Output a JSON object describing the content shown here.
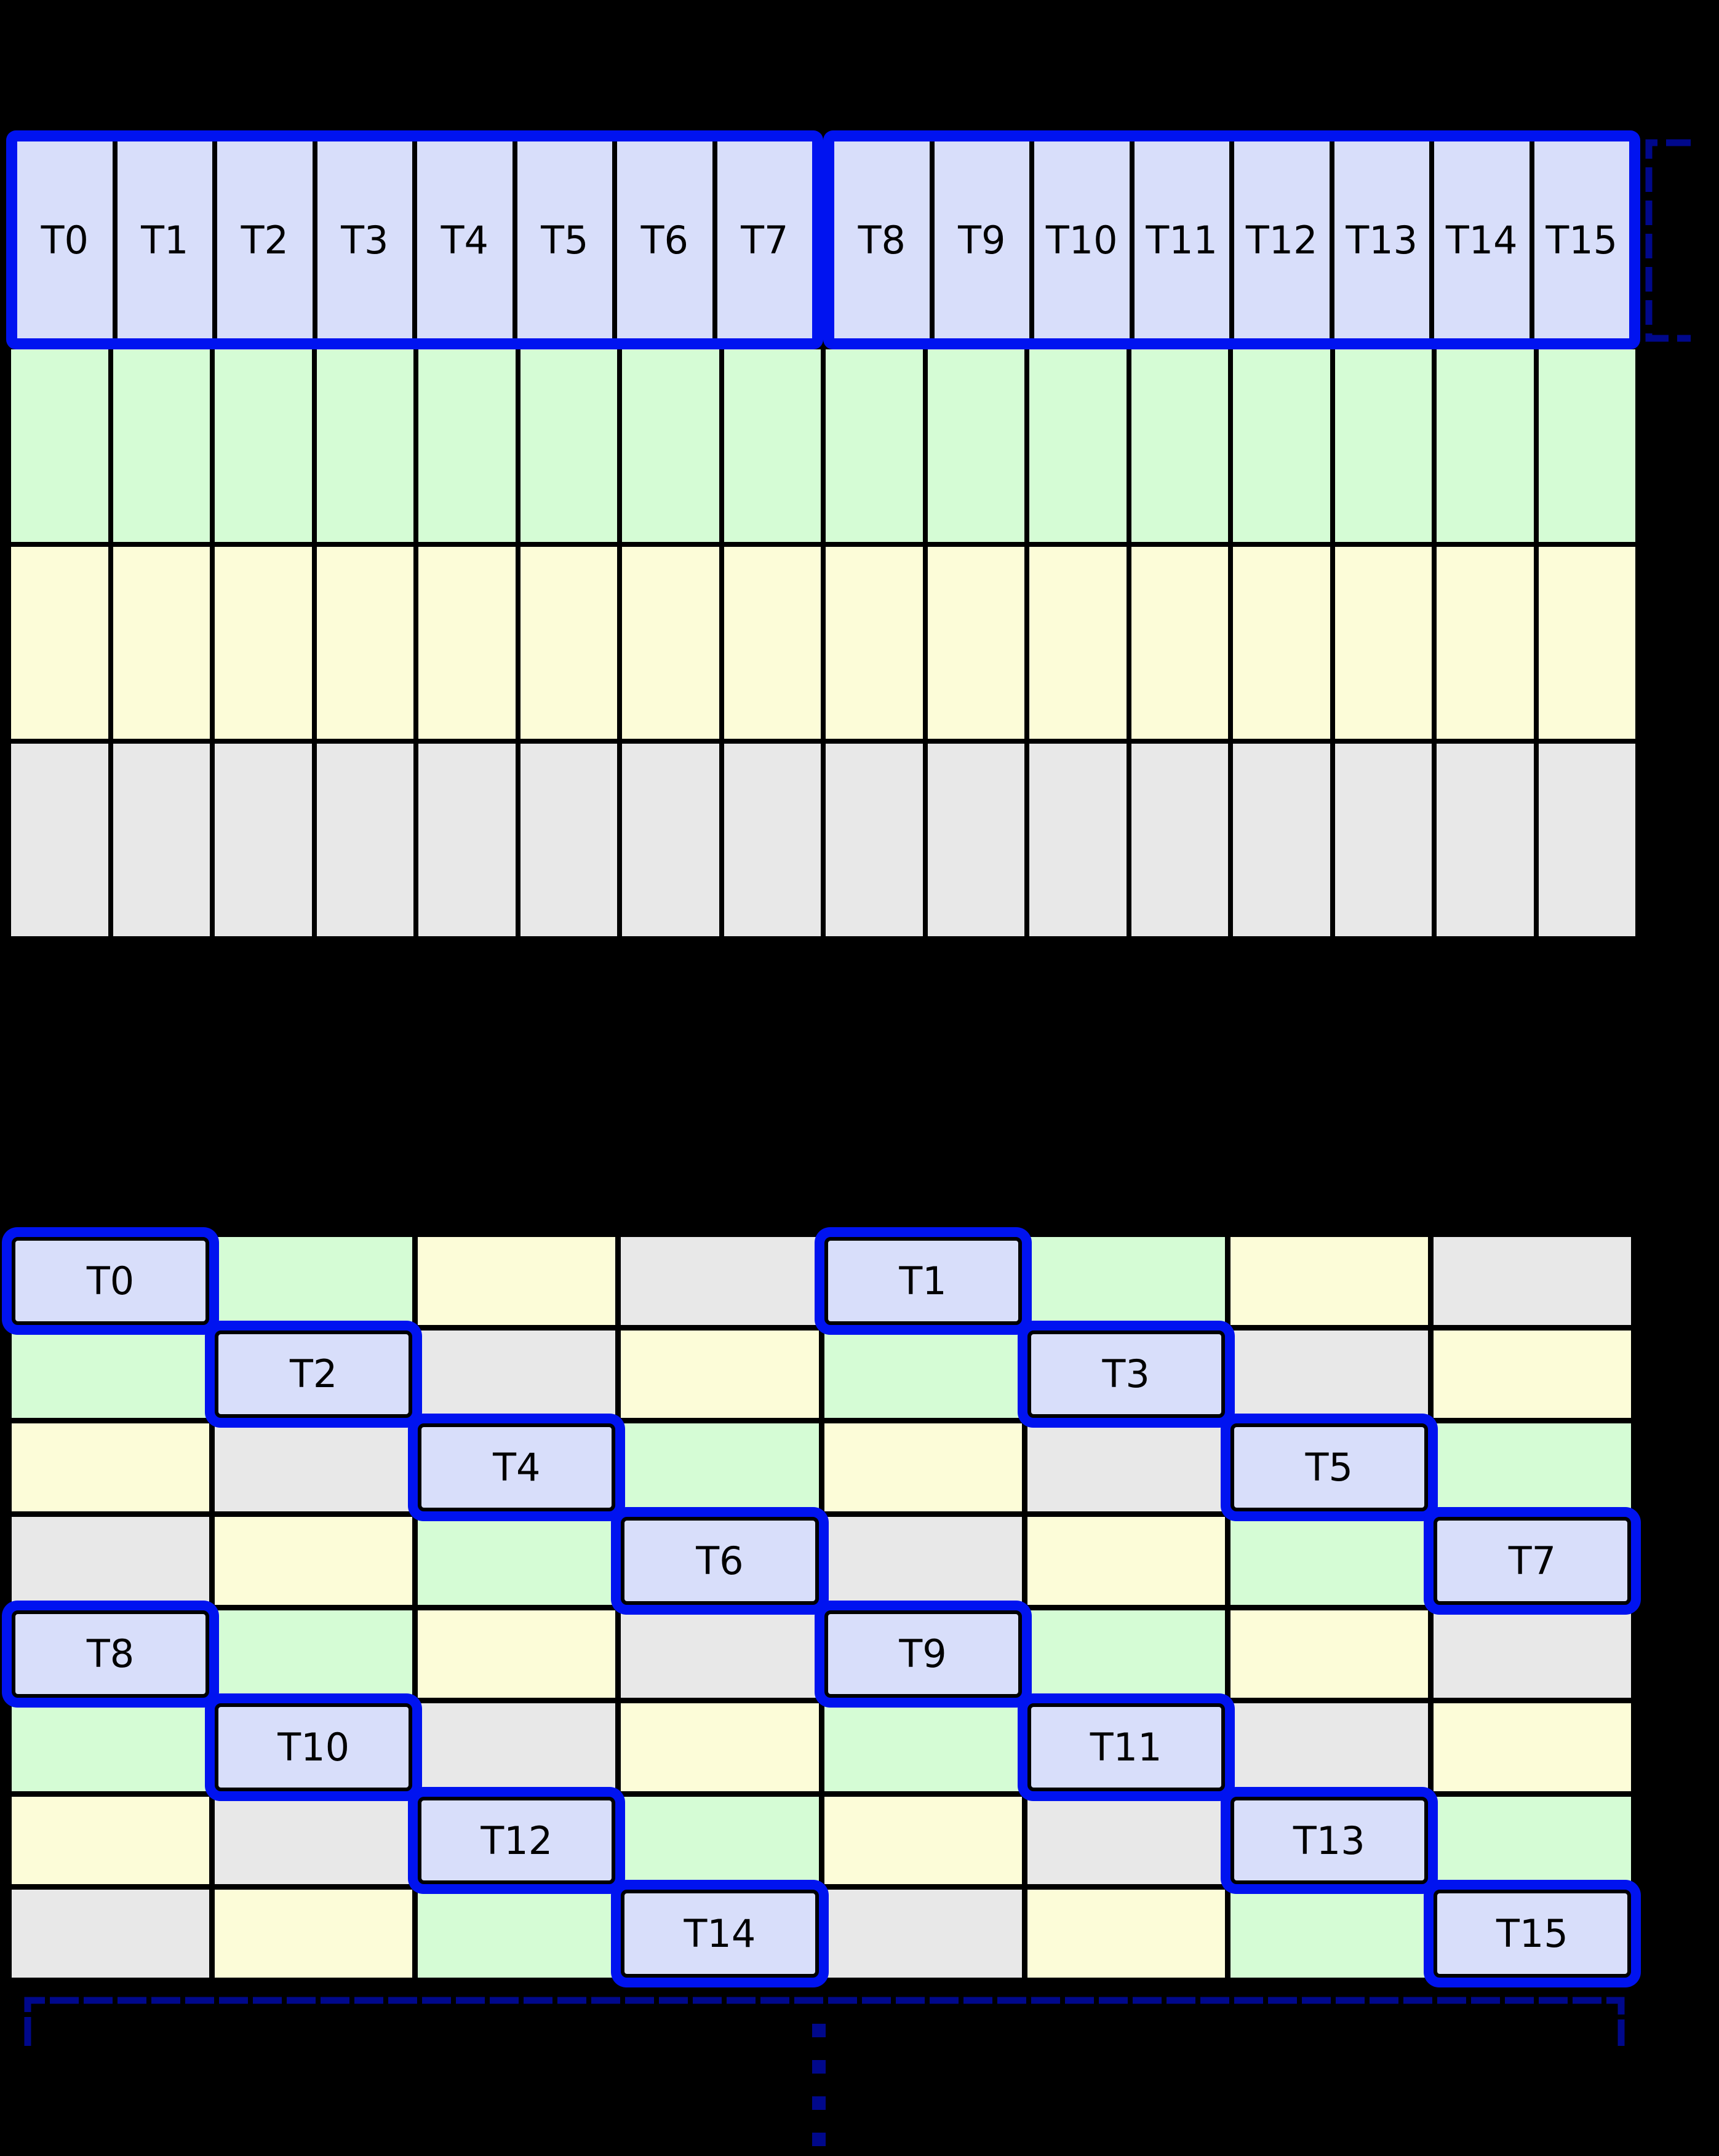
{
  "diagram": {
    "kind": "thread-to-memory-layout",
    "background": "#000000"
  },
  "colors": {
    "thread_cell_fill": "#d8defa",
    "green_cell_fill": "#d5fcd5",
    "yellow_cell_fill": "#fcfcd8",
    "gray_cell_fill": "#e8e8e8",
    "thread_outline_blue": "#0013f0",
    "bracket_navy": "#00088b",
    "grid_line_black": "#000000",
    "label_text": "#000000"
  },
  "top_grid": {
    "columns": 16,
    "group_size": 8,
    "thread_labels": [
      "T0",
      "T1",
      "T2",
      "T3",
      "T4",
      "T5",
      "T6",
      "T7",
      "T8",
      "T9",
      "T10",
      "T11",
      "T12",
      "T13",
      "T14",
      "T15"
    ],
    "plain_rows": [
      {
        "color": "green"
      },
      {
        "color": "yellow"
      },
      {
        "color": "gray"
      }
    ]
  },
  "bottom_grid": {
    "columns": 8,
    "rows": [
      {
        "cells": [
          {
            "color": "blue",
            "label": "T0"
          },
          {
            "color": "green"
          },
          {
            "color": "yellow"
          },
          {
            "color": "gray"
          },
          {
            "color": "blue",
            "label": "T1"
          },
          {
            "color": "green"
          },
          {
            "color": "yellow"
          },
          {
            "color": "gray"
          }
        ]
      },
      {
        "cells": [
          {
            "color": "green"
          },
          {
            "color": "blue",
            "label": "T2"
          },
          {
            "color": "gray"
          },
          {
            "color": "yellow"
          },
          {
            "color": "green"
          },
          {
            "color": "blue",
            "label": "T3"
          },
          {
            "color": "gray"
          },
          {
            "color": "yellow"
          }
        ]
      },
      {
        "cells": [
          {
            "color": "yellow"
          },
          {
            "color": "gray"
          },
          {
            "color": "blue",
            "label": "T4"
          },
          {
            "color": "green"
          },
          {
            "color": "yellow"
          },
          {
            "color": "gray"
          },
          {
            "color": "blue",
            "label": "T5"
          },
          {
            "color": "green"
          }
        ]
      },
      {
        "cells": [
          {
            "color": "gray"
          },
          {
            "color": "yellow"
          },
          {
            "color": "green"
          },
          {
            "color": "blue",
            "label": "T6"
          },
          {
            "color": "gray"
          },
          {
            "color": "yellow"
          },
          {
            "color": "green"
          },
          {
            "color": "blue",
            "label": "T7"
          }
        ]
      },
      {
        "cells": [
          {
            "color": "blue",
            "label": "T8"
          },
          {
            "color": "green"
          },
          {
            "color": "yellow"
          },
          {
            "color": "gray"
          },
          {
            "color": "blue",
            "label": "T9"
          },
          {
            "color": "green"
          },
          {
            "color": "yellow"
          },
          {
            "color": "gray"
          }
        ]
      },
      {
        "cells": [
          {
            "color": "green"
          },
          {
            "color": "blue",
            "label": "T10"
          },
          {
            "color": "gray"
          },
          {
            "color": "yellow"
          },
          {
            "color": "green"
          },
          {
            "color": "blue",
            "label": "T11"
          },
          {
            "color": "gray"
          },
          {
            "color": "yellow"
          }
        ]
      },
      {
        "cells": [
          {
            "color": "yellow"
          },
          {
            "color": "gray"
          },
          {
            "color": "blue",
            "label": "T12"
          },
          {
            "color": "green"
          },
          {
            "color": "yellow"
          },
          {
            "color": "gray"
          },
          {
            "color": "blue",
            "label": "T13"
          },
          {
            "color": "green"
          }
        ]
      },
      {
        "cells": [
          {
            "color": "gray"
          },
          {
            "color": "yellow"
          },
          {
            "color": "green"
          },
          {
            "color": "blue",
            "label": "T14"
          },
          {
            "color": "gray"
          },
          {
            "color": "yellow"
          },
          {
            "color": "green"
          },
          {
            "color": "blue",
            "label": "T15"
          }
        ]
      }
    ]
  },
  "annotations": {
    "right_bracket": {
      "style": "dashed",
      "color": "#00088b"
    },
    "bottom_bracket": {
      "style": "dashed",
      "color": "#00088b"
    },
    "continuation_ellipsis": {
      "dot_count": 4,
      "color": "#00088b"
    }
  }
}
